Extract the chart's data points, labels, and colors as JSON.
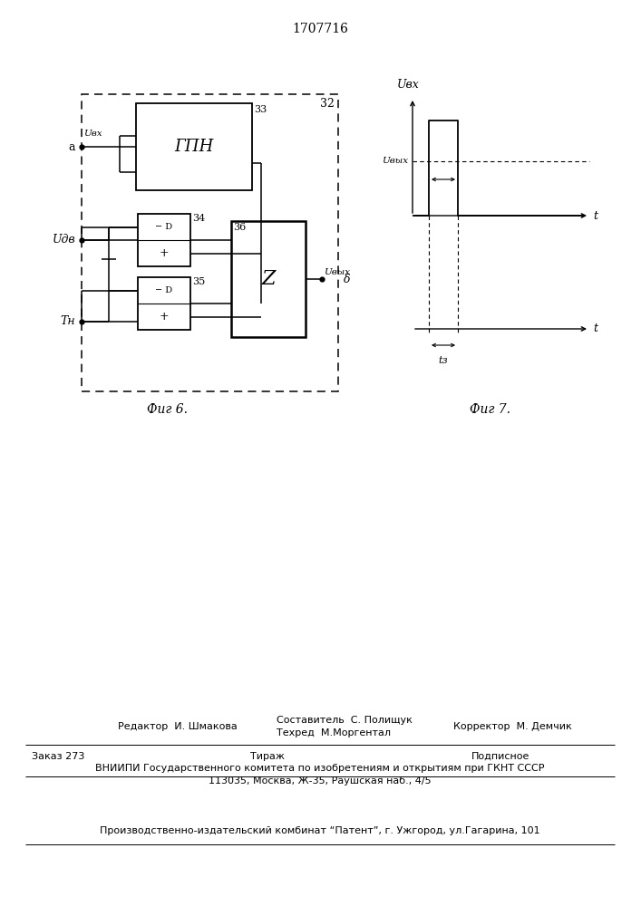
{
  "title": "1707716",
  "fig6_label": "Фиг 6.",
  "fig7_label": "Фиг 7.",
  "block32_label": "32",
  "block33_label": "33",
  "block33_text": "ГПН",
  "block34_label": "34",
  "block35_label": "35",
  "block36_label": "36",
  "block36_text": "Z",
  "label_a": "a",
  "label_Uvx": "Uвх",
  "label_UdB": "Uдв",
  "label_Tn": "Tн",
  "label_Uvyx": "Uвых",
  "label_delta": "δ",
  "label_Uvx_graph": "Uвх",
  "label_Uvyx_graph": "Uвых",
  "label_t1": "t",
  "label_t2": "t",
  "label_td": "tз",
  "footer_line1": "Редактор  И. Шмакова",
  "footer_line2": "Составитель  С. Полищук",
  "footer_line3": "Техред  М.Моргентал",
  "footer_line4": "Корректор  М. Демчик",
  "footer_order": "Заказ 273",
  "footer_tirazh": "Тираж",
  "footer_podpisnoe": "Подписное",
  "footer_vnipi": "ВНИИПИ Государственного комитета по изобретениям и открытиям при ГКНТ СССР",
  "footer_address": "113035, Москва, Ж-35, Раушская наб., 4/5",
  "footer_proizv": "Производственно-издательский комбинат “Патент”, г. Ужгород, ул.Гагарина, 101",
  "bg_color": "#ffffff",
  "line_color": "#000000"
}
